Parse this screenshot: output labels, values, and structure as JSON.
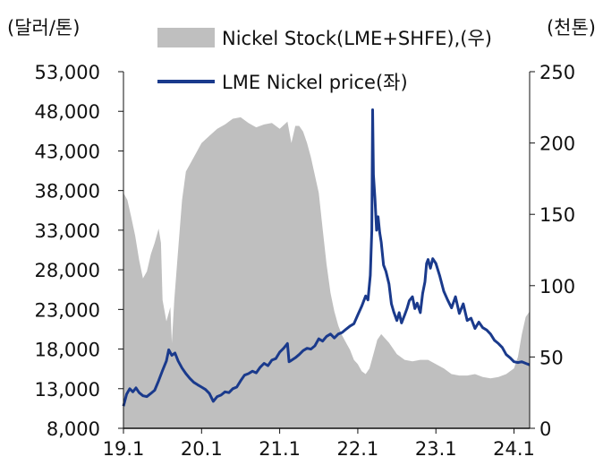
{
  "chart_data": {
    "type": "area-line-combo",
    "left_axis_unit": "(달러/톤)",
    "right_axis_unit": "(천톤)",
    "left_ticks": [
      "53,000",
      "48,000",
      "43,000",
      "38,000",
      "33,000",
      "28,000",
      "23,000",
      "18,000",
      "13,000",
      "8,000"
    ],
    "left_ylim": [
      8000,
      53000
    ],
    "right_ticks": [
      "250",
      "200",
      "150",
      "100",
      "50",
      "0"
    ],
    "right_ylim": [
      0,
      250
    ],
    "x_ticks": [
      "19.1",
      "20.1",
      "21.1",
      "22.1",
      "23.1",
      "24.1"
    ],
    "x_tick_values": [
      2019.0,
      2020.0,
      2021.0,
      2022.0,
      2023.0,
      2024.0
    ],
    "xlim": [
      2019.0,
      2024.2
    ],
    "colors": {
      "stock": "#bfbfbf",
      "price": "#1a3a8c"
    },
    "series": [
      {
        "name": "Nickel Stock(LME+SHFE),(우)",
        "kind": "area",
        "axis": "right",
        "points": [
          [
            2019.0,
            165
          ],
          [
            2019.05,
            160
          ],
          [
            2019.1,
            148
          ],
          [
            2019.15,
            135
          ],
          [
            2019.2,
            118
          ],
          [
            2019.25,
            105
          ],
          [
            2019.3,
            110
          ],
          [
            2019.35,
            122
          ],
          [
            2019.4,
            130
          ],
          [
            2019.45,
            140
          ],
          [
            2019.48,
            130
          ],
          [
            2019.5,
            90
          ],
          [
            2019.55,
            75
          ],
          [
            2019.6,
            85
          ],
          [
            2019.62,
            60
          ],
          [
            2019.65,
            90
          ],
          [
            2019.7,
            125
          ],
          [
            2019.75,
            160
          ],
          [
            2019.8,
            180
          ],
          [
            2019.85,
            185
          ],
          [
            2019.9,
            190
          ],
          [
            2019.95,
            195
          ],
          [
            2020.0,
            200
          ],
          [
            2020.1,
            205
          ],
          [
            2020.2,
            210
          ],
          [
            2020.3,
            213
          ],
          [
            2020.4,
            217
          ],
          [
            2020.5,
            218
          ],
          [
            2020.6,
            214
          ],
          [
            2020.7,
            211
          ],
          [
            2020.8,
            213
          ],
          [
            2020.9,
            214
          ],
          [
            2021.0,
            210
          ],
          [
            2021.1,
            215
          ],
          [
            2021.15,
            200
          ],
          [
            2021.2,
            212
          ],
          [
            2021.25,
            212
          ],
          [
            2021.3,
            208
          ],
          [
            2021.35,
            200
          ],
          [
            2021.4,
            190
          ],
          [
            2021.5,
            165
          ],
          [
            2021.55,
            140
          ],
          [
            2021.6,
            115
          ],
          [
            2021.65,
            95
          ],
          [
            2021.7,
            82
          ],
          [
            2021.75,
            72
          ],
          [
            2021.8,
            65
          ],
          [
            2021.85,
            60
          ],
          [
            2021.9,
            55
          ],
          [
            2021.95,
            48
          ],
          [
            2022.0,
            45
          ],
          [
            2022.05,
            40
          ],
          [
            2022.1,
            38
          ],
          [
            2022.15,
            42
          ],
          [
            2022.2,
            52
          ],
          [
            2022.25,
            62
          ],
          [
            2022.3,
            66
          ],
          [
            2022.35,
            63
          ],
          [
            2022.4,
            60
          ],
          [
            2022.5,
            52
          ],
          [
            2022.6,
            48
          ],
          [
            2022.7,
            47
          ],
          [
            2022.8,
            48
          ],
          [
            2022.9,
            48
          ],
          [
            2023.0,
            45
          ],
          [
            2023.1,
            42
          ],
          [
            2023.2,
            38
          ],
          [
            2023.3,
            37
          ],
          [
            2023.4,
            37
          ],
          [
            2023.5,
            38
          ],
          [
            2023.6,
            36
          ],
          [
            2023.7,
            35
          ],
          [
            2023.8,
            36
          ],
          [
            2023.9,
            38
          ],
          [
            2024.0,
            42
          ],
          [
            2024.05,
            50
          ],
          [
            2024.1,
            66
          ],
          [
            2024.15,
            78
          ],
          [
            2024.2,
            82
          ]
        ]
      },
      {
        "name": "LME Nickel price(좌)",
        "kind": "line",
        "axis": "left",
        "points": [
          [
            2019.0,
            10800
          ],
          [
            2019.04,
            12300
          ],
          [
            2019.08,
            13000
          ],
          [
            2019.12,
            12600
          ],
          [
            2019.16,
            13100
          ],
          [
            2019.2,
            12500
          ],
          [
            2019.25,
            12100
          ],
          [
            2019.3,
            12000
          ],
          [
            2019.35,
            12400
          ],
          [
            2019.4,
            12800
          ],
          [
            2019.45,
            14000
          ],
          [
            2019.5,
            15300
          ],
          [
            2019.55,
            16500
          ],
          [
            2019.58,
            17900
          ],
          [
            2019.62,
            17200
          ],
          [
            2019.66,
            17500
          ],
          [
            2019.7,
            16500
          ],
          [
            2019.75,
            15600
          ],
          [
            2019.8,
            14900
          ],
          [
            2019.85,
            14300
          ],
          [
            2019.9,
            13800
          ],
          [
            2019.95,
            13500
          ],
          [
            2020.0,
            13200
          ],
          [
            2020.05,
            12900
          ],
          [
            2020.1,
            12400
          ],
          [
            2020.15,
            11400
          ],
          [
            2020.2,
            12000
          ],
          [
            2020.25,
            12200
          ],
          [
            2020.3,
            12600
          ],
          [
            2020.35,
            12500
          ],
          [
            2020.4,
            13000
          ],
          [
            2020.45,
            13200
          ],
          [
            2020.5,
            14000
          ],
          [
            2020.55,
            14700
          ],
          [
            2020.6,
            14900
          ],
          [
            2020.65,
            15200
          ],
          [
            2020.7,
            15000
          ],
          [
            2020.75,
            15700
          ],
          [
            2020.8,
            16200
          ],
          [
            2020.85,
            15900
          ],
          [
            2020.9,
            16600
          ],
          [
            2020.95,
            16800
          ],
          [
            2021.0,
            17600
          ],
          [
            2021.05,
            18100
          ],
          [
            2021.1,
            18700
          ],
          [
            2021.12,
            16400
          ],
          [
            2021.14,
            16500
          ],
          [
            2021.2,
            16900
          ],
          [
            2021.25,
            17300
          ],
          [
            2021.3,
            17800
          ],
          [
            2021.35,
            18100
          ],
          [
            2021.4,
            18000
          ],
          [
            2021.45,
            18400
          ],
          [
            2021.5,
            19300
          ],
          [
            2021.55,
            19000
          ],
          [
            2021.6,
            19600
          ],
          [
            2021.65,
            19900
          ],
          [
            2021.7,
            19400
          ],
          [
            2021.75,
            19900
          ],
          [
            2021.8,
            20100
          ],
          [
            2021.85,
            20500
          ],
          [
            2021.9,
            20900
          ],
          [
            2021.95,
            21200
          ],
          [
            2022.0,
            22300
          ],
          [
            2022.05,
            23400
          ],
          [
            2022.1,
            24700
          ],
          [
            2022.13,
            24200
          ],
          [
            2022.16,
            27300
          ],
          [
            2022.18,
            33000
          ],
          [
            2022.19,
            48200
          ],
          [
            2022.2,
            40000
          ],
          [
            2022.22,
            37000
          ],
          [
            2022.24,
            33000
          ],
          [
            2022.26,
            34700
          ],
          [
            2022.28,
            32700
          ],
          [
            2022.3,
            31500
          ],
          [
            2022.33,
            28600
          ],
          [
            2022.36,
            27800
          ],
          [
            2022.4,
            26200
          ],
          [
            2022.43,
            23700
          ],
          [
            2022.46,
            22700
          ],
          [
            2022.5,
            21600
          ],
          [
            2022.53,
            22600
          ],
          [
            2022.56,
            21300
          ],
          [
            2022.6,
            22300
          ],
          [
            2022.63,
            23100
          ],
          [
            2022.66,
            24100
          ],
          [
            2022.7,
            24600
          ],
          [
            2022.73,
            23100
          ],
          [
            2022.76,
            23800
          ],
          [
            2022.8,
            22600
          ],
          [
            2022.83,
            25000
          ],
          [
            2022.86,
            26500
          ],
          [
            2022.88,
            28800
          ],
          [
            2022.9,
            29300
          ],
          [
            2022.93,
            28200
          ],
          [
            2022.96,
            29400
          ],
          [
            2023.0,
            28800
          ],
          [
            2023.05,
            27200
          ],
          [
            2023.1,
            25300
          ],
          [
            2023.15,
            24200
          ],
          [
            2023.2,
            23200
          ],
          [
            2023.25,
            24600
          ],
          [
            2023.3,
            22500
          ],
          [
            2023.35,
            23700
          ],
          [
            2023.4,
            21600
          ],
          [
            2023.45,
            21900
          ],
          [
            2023.5,
            20600
          ],
          [
            2023.55,
            21400
          ],
          [
            2023.6,
            20700
          ],
          [
            2023.65,
            20400
          ],
          [
            2023.7,
            19900
          ],
          [
            2023.75,
            19100
          ],
          [
            2023.8,
            18700
          ],
          [
            2023.85,
            18200
          ],
          [
            2023.9,
            17300
          ],
          [
            2023.95,
            16900
          ],
          [
            2024.0,
            16400
          ],
          [
            2024.05,
            16300
          ],
          [
            2024.1,
            16400
          ],
          [
            2024.15,
            16200
          ],
          [
            2024.2,
            16000
          ]
        ]
      }
    ]
  }
}
